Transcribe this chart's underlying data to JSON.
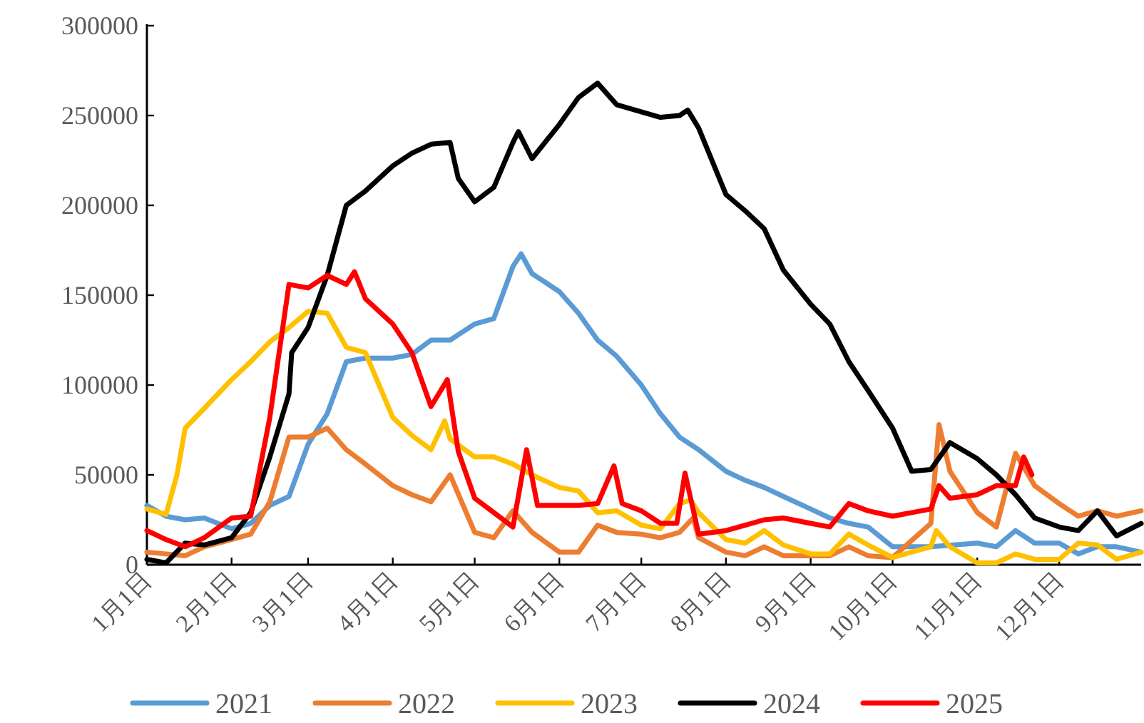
{
  "chart_data": {
    "type": "line",
    "xlim": [
      "--01-01",
      "--12-31"
    ],
    "xticks": [
      {
        "value": "--01-01",
        "label": "1月1日"
      },
      {
        "value": "--02-01",
        "label": "2月1日"
      },
      {
        "value": "--03-01",
        "label": "3月1日"
      },
      {
        "value": "--04-01",
        "label": "4月1日"
      },
      {
        "value": "--05-01",
        "label": "5月1日"
      },
      {
        "value": "--06-01",
        "label": "6月1日"
      },
      {
        "value": "--07-01",
        "label": "7月1日"
      },
      {
        "value": "--08-01",
        "label": "8月1日"
      },
      {
        "value": "--09-01",
        "label": "9月1日"
      },
      {
        "value": "--10-01",
        "label": "10月1日"
      },
      {
        "value": "--11-01",
        "label": "11月1日"
      },
      {
        "value": "--12-01",
        "label": "12月1日"
      }
    ],
    "ylim": [
      0,
      300000
    ],
    "yticks": [
      0,
      50000,
      100000,
      150000,
      200000,
      250000,
      300000
    ],
    "grid": false,
    "legend": "bottom",
    "marker": "none",
    "line_style": "solid",
    "series": [
      {
        "name": "2021",
        "color": "#5b9bd5",
        "x": [
          "--01-01",
          "--01-08",
          "--01-15",
          "--01-22",
          "--02-01",
          "--02-08",
          "--02-15",
          "--02-22",
          "--03-01",
          "--03-08",
          "--03-15",
          "--03-22",
          "--04-01",
          "--04-08",
          "--04-15",
          "--04-22",
          "--05-01",
          "--05-08",
          "--05-15",
          "--05-18",
          "--05-22",
          "--06-01",
          "--06-08",
          "--06-15",
          "--06-22",
          "--07-01",
          "--07-08",
          "--07-15",
          "--07-22",
          "--08-01",
          "--08-08",
          "--08-15",
          "--08-22",
          "--09-01",
          "--09-08",
          "--09-15",
          "--09-22",
          "--10-01",
          "--10-15",
          "--11-01",
          "--11-08",
          "--11-15",
          "--11-22",
          "--12-01",
          "--12-08",
          "--12-15",
          "--12-22",
          "--12-31"
        ],
        "values": [
          33000,
          27000,
          25000,
          26000,
          20000,
          23000,
          33000,
          38000,
          67000,
          84000,
          113000,
          115000,
          115000,
          117000,
          125000,
          125000,
          134000,
          137000,
          166000,
          173000,
          162000,
          152000,
          140000,
          125000,
          116000,
          100000,
          84000,
          71000,
          64000,
          52000,
          47000,
          43000,
          38000,
          31000,
          26000,
          23000,
          21000,
          10000,
          10000,
          12000,
          10000,
          19000,
          12000,
          12000,
          6000,
          10000,
          10000,
          7000
        ]
      },
      {
        "name": "2022",
        "color": "#ed7d31",
        "x": [
          "--01-01",
          "--01-08",
          "--01-15",
          "--01-22",
          "--02-01",
          "--02-08",
          "--02-15",
          "--02-22",
          "--03-01",
          "--03-08",
          "--03-15",
          "--03-22",
          "--04-01",
          "--04-08",
          "--04-15",
          "--04-22",
          "--05-01",
          "--05-08",
          "--05-15",
          "--05-22",
          "--06-01",
          "--06-08",
          "--06-15",
          "--06-22",
          "--07-01",
          "--07-08",
          "--07-15",
          "--07-20",
          "--07-22",
          "--08-01",
          "--08-08",
          "--08-15",
          "--08-22",
          "--09-01",
          "--09-08",
          "--09-15",
          "--09-22",
          "--10-01",
          "--10-15",
          "--10-18",
          "--10-22",
          "--11-01",
          "--11-08",
          "--11-15",
          "--11-22",
          "--12-01",
          "--12-08",
          "--12-15",
          "--12-22",
          "--12-31"
        ],
        "values": [
          7000,
          6000,
          5000,
          10000,
          14000,
          17000,
          35000,
          71000,
          71000,
          76000,
          64000,
          56000,
          44000,
          39000,
          35000,
          50000,
          18000,
          15000,
          30000,
          18000,
          7000,
          7000,
          22000,
          18000,
          17000,
          15000,
          18000,
          26000,
          15000,
          7000,
          5000,
          10000,
          5000,
          5000,
          5000,
          10000,
          5000,
          4000,
          23000,
          78000,
          52000,
          29000,
          21000,
          62000,
          44000,
          34000,
          27000,
          30000,
          27000,
          30000
        ]
      },
      {
        "name": "2023",
        "color": "#ffc000",
        "x": [
          "--01-01",
          "--01-08",
          "--01-12",
          "--01-15",
          "--01-22",
          "--02-01",
          "--02-08",
          "--02-15",
          "--02-22",
          "--03-01",
          "--03-08",
          "--03-15",
          "--03-22",
          "--04-01",
          "--04-08",
          "--04-15",
          "--04-20",
          "--04-22",
          "--05-01",
          "--05-08",
          "--05-15",
          "--05-22",
          "--06-01",
          "--06-08",
          "--06-15",
          "--06-22",
          "--07-01",
          "--07-08",
          "--07-15",
          "--07-19",
          "--07-22",
          "--08-01",
          "--08-08",
          "--08-15",
          "--08-22",
          "--09-01",
          "--09-08",
          "--09-15",
          "--09-22",
          "--10-01",
          "--10-15",
          "--10-17",
          "--10-22",
          "--11-01",
          "--11-08",
          "--11-15",
          "--11-22",
          "--12-01",
          "--12-08",
          "--12-15",
          "--12-22",
          "--12-31"
        ],
        "values": [
          31000,
          28000,
          50000,
          76000,
          87000,
          103000,
          113000,
          124000,
          132000,
          141000,
          140000,
          121000,
          118000,
          82000,
          72000,
          64000,
          80000,
          70000,
          60000,
          60000,
          56000,
          50000,
          43000,
          41000,
          29000,
          30000,
          22000,
          20000,
          34000,
          36000,
          29000,
          14000,
          12000,
          19000,
          11000,
          6000,
          6000,
          17000,
          11000,
          4000,
          10000,
          19000,
          10000,
          1000,
          1000,
          6000,
          3000,
          3000,
          12000,
          11000,
          3000,
          7000
        ]
      },
      {
        "name": "2024",
        "color": "#000000",
        "x": [
          "--01-01",
          "--01-08",
          "--01-15",
          "--01-22",
          "--02-01",
          "--02-08",
          "--02-15",
          "--02-22",
          "--02-23",
          "--03-01",
          "--03-08",
          "--03-15",
          "--03-22",
          "--04-01",
          "--04-08",
          "--04-15",
          "--04-22",
          "--04-25",
          "--05-01",
          "--05-08",
          "--05-15",
          "--05-17",
          "--05-22",
          "--06-01",
          "--06-08",
          "--06-15",
          "--06-22",
          "--07-01",
          "--07-08",
          "--07-15",
          "--07-18",
          "--07-22",
          "--08-01",
          "--08-08",
          "--08-15",
          "--08-22",
          "--09-01",
          "--09-08",
          "--09-15",
          "--09-22",
          "--10-01",
          "--10-08",
          "--10-15",
          "--10-22",
          "--11-01",
          "--11-08",
          "--11-15",
          "--11-22",
          "--12-01",
          "--12-08",
          "--12-15",
          "--12-22",
          "--12-31"
        ],
        "values": [
          3000,
          1000,
          12000,
          11000,
          15000,
          29000,
          60000,
          95000,
          118000,
          132000,
          161000,
          200000,
          208000,
          222000,
          229000,
          234000,
          235000,
          215000,
          202000,
          210000,
          235000,
          241000,
          226000,
          245000,
          260000,
          268000,
          256000,
          252000,
          249000,
          250000,
          253000,
          243000,
          206000,
          197000,
          187000,
          164000,
          145000,
          134000,
          113000,
          97000,
          76000,
          52000,
          53000,
          68000,
          59000,
          50000,
          39000,
          26000,
          21000,
          19000,
          30000,
          16000,
          23000
        ]
      },
      {
        "name": "2025",
        "color": "#ff0000",
        "x": [
          "--01-01",
          "--01-08",
          "--01-15",
          "--01-22",
          "--02-01",
          "--02-08",
          "--02-15",
          "--02-22",
          "--03-01",
          "--03-08",
          "--03-15",
          "--03-18",
          "--03-22",
          "--04-01",
          "--04-08",
          "--04-15",
          "--04-21",
          "--04-25",
          "--05-01",
          "--05-08",
          "--05-15",
          "--05-20",
          "--05-24",
          "--06-01",
          "--06-08",
          "--06-15",
          "--06-21",
          "--06-24",
          "--07-01",
          "--07-08",
          "--07-14",
          "--07-17",
          "--07-22",
          "--08-01",
          "--08-08",
          "--08-15",
          "--08-22",
          "--09-01",
          "--09-08",
          "--09-15",
          "--09-22",
          "--10-01",
          "--10-15",
          "--10-18",
          "--10-22",
          "--11-01",
          "--11-08",
          "--11-15",
          "--11-18",
          "--11-21"
        ],
        "values": [
          19000,
          14000,
          10000,
          15000,
          26000,
          27000,
          82000,
          156000,
          154000,
          161000,
          156000,
          163000,
          148000,
          134000,
          118000,
          88000,
          103000,
          63000,
          37000,
          29000,
          21000,
          64000,
          33000,
          33000,
          33000,
          34000,
          55000,
          34000,
          30000,
          23000,
          23000,
          51000,
          17000,
          19000,
          22000,
          25000,
          26000,
          23000,
          21000,
          34000,
          30000,
          27000,
          31000,
          44000,
          37000,
          39000,
          44000,
          44000,
          60000,
          50000
        ]
      }
    ]
  }
}
